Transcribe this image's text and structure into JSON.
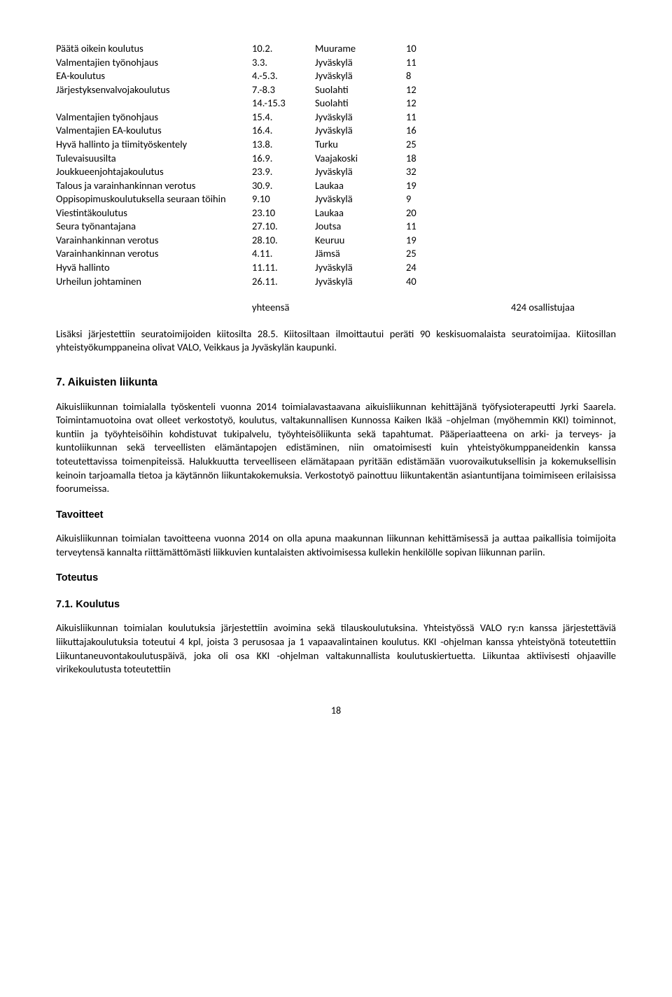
{
  "trainings": [
    {
      "name": "Päätä oikein koulutus",
      "date": "10.2.",
      "place": "Muurame",
      "count": "10"
    },
    {
      "name": "Valmentajien työnohjaus",
      "date": "3.3.",
      "place": "Jyväskylä",
      "count": "11"
    },
    {
      "name": "EA-koulutus",
      "date": "4.-5.3.",
      "place": "Jyväskylä",
      "count": "8"
    },
    {
      "name": "Järjestyksenvalvojakoulutus",
      "date": "7.-8.3",
      "place": "Suolahti",
      "count": "12"
    },
    {
      "name": "",
      "date": "14.-15.3",
      "place": "Suolahti",
      "count": "12"
    },
    {
      "name": "Valmentajien työnohjaus",
      "date": "15.4.",
      "place": "Jyväskylä",
      "count": "11"
    },
    {
      "name": "Valmentajien EA-koulutus",
      "date": "16.4.",
      "place": "Jyväskylä",
      "count": "16"
    },
    {
      "name": "Hyvä hallinto ja tiimityöskentely",
      "date": "13.8.",
      "place": "Turku",
      "count": "25"
    },
    {
      "name": "Tulevaisuusilta",
      "date": "16.9.",
      "place": "Vaajakoski",
      "count": "18"
    },
    {
      "name": "Joukkueenjohtajakoulutus",
      "date": "23.9.",
      "place": "Jyväskylä",
      "count": "32"
    },
    {
      "name": "Talous ja varainhankinnan verotus",
      "date": "30.9.",
      "place": "Laukaa",
      "count": "19"
    },
    {
      "name": "Oppisopimuskoulutuksella seuraan töihin",
      "date": "9.10",
      "place": "Jyväskylä",
      "count": "9"
    },
    {
      "name": "Viestintäkoulutus",
      "date": "23.10",
      "place": "Laukaa",
      "count": "20"
    },
    {
      "name": "Seura työnantajana",
      "date": "27.10.",
      "place": "Joutsa",
      "count": "11"
    },
    {
      "name": "Varainhankinnan verotus",
      "date": "28.10.",
      "place": "Keuruu",
      "count": "19"
    },
    {
      "name": "Varainhankinnan verotus",
      "date": "4.11.",
      "place": "Jämsä",
      "count": "25"
    },
    {
      "name": "Hyvä hallinto",
      "date": "11.11.",
      "place": "Jyväskylä",
      "count": "24"
    },
    {
      "name": "Urheilun johtaminen",
      "date": "26.11.",
      "place": "Jyväskylä",
      "count": "40"
    }
  ],
  "summary": {
    "label": "yhteensä",
    "value": "424 osallistujaa"
  },
  "para1": "Lisäksi järjestettiin seuratoimijoiden kiitosilta 28.5. Kiitosiltaan ilmoittautui peräti 90 keskisuomalaista seuratoimijaa. Kiitosillan yhteistyökumppaneina olivat VALO, Veikkaus ja Jyväskylän kaupunki.",
  "h2": "7. Aikuisten liikunta",
  "para2": "Aikuisliikunnan toimialalla työskenteli vuonna 2014 toimialavastaavana aikuisliikunnan kehittäjänä työfysioterapeutti Jyrki Saarela. Toimintamuotoina ovat olleet verkostotyö, koulutus, valtakunnallisen Kunnossa Kaiken Ikää –ohjelman (myöhemmin KKI) toiminnot, kuntiin ja työyhteisöihin kohdistuvat tukipalvelu, työyhteisöliikunta sekä tapahtumat. Pääperiaatteena on arki- ja terveys- ja kuntoliikunnan sekä terveellisten elämäntapojen edistäminen, niin omatoimisesti kuin yhteistyökumppaneidenkin kanssa toteutettavissa toimenpiteissä. Halukkuutta terveelliseen elämätapaan pyritään edistämään vuorovaikutuksellisin ja kokemuksellisin keinoin tarjoamalla tietoa ja käytännön liikuntakokemuksia. Verkostotyö painottuu liikuntakentän asiantuntijana toimimiseen erilaisissa foorumeissa.",
  "h3a": "Tavoitteet",
  "para3": "Aikuisliikunnan toimialan tavoitteena vuonna 2014 on olla apuna maakunnan liikunnan kehittämisessä ja auttaa paikallisia toimijoita terveytensä kannalta riittämättömästi liikkuvien kuntalaisten aktivoimisessa kullekin henkilölle sopivan liikunnan pariin.",
  "h3b": "Toteutus",
  "h3c": "7.1. Koulutus",
  "para4": "Aikuisliikunnan toimialan koulutuksia järjestettiin avoimina sekä tilauskoulutuksina. Yhteistyössä VALO ry:n kanssa järjestettäviä liikuttajakoulutuksia toteutui 4 kpl, joista 3 perusosaa ja 1 vapaavalintainen koulutus. KKI -ohjelman kanssa yhteistyönä toteutettiin Liikuntaneuvontakoulutuspäivä, joka oli osa KKI -ohjelman valtakunnallista koulutuskiertuetta. Liikuntaa aktiivisesti ohjaaville virikekoulutusta toteutettiin",
  "page": "18"
}
